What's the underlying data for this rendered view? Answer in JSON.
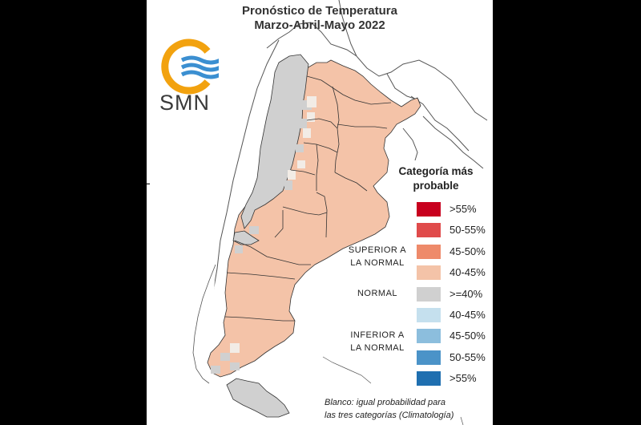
{
  "title_line1": "Pronóstico de Temperatura",
  "title_line2": "Marzo-Abril-Mayo 2022",
  "logo": {
    "text": "SMN",
    "icon": "smn-logo-icon"
  },
  "legend": {
    "title_line1": "Categoría más",
    "title_line2": "probable",
    "items": [
      {
        "label": ">55%",
        "color": "#c8001e"
      },
      {
        "label": "50-55%",
        "color": "#e04b4b"
      },
      {
        "label": "45-50%",
        "color": "#ee8a6a"
      },
      {
        "label": "40-45%",
        "color": "#f4c3a8"
      },
      {
        "label": ">=40%",
        "color": "#d0d0d0"
      },
      {
        "label": "40-45%",
        "color": "#c5e0ee"
      },
      {
        "label": "45-50%",
        "color": "#8cbedd"
      },
      {
        "label": "50-55%",
        "color": "#4b93c8"
      },
      {
        "label": ">55%",
        "color": "#1f6fb0"
      }
    ],
    "categories": {
      "superior_line1": "SUPERIOR A",
      "superior_line2": "LA NORMAL",
      "normal": "NORMAL",
      "inferior_line1": "INFERIOR A",
      "inferior_line2": "LA NORMAL"
    },
    "note_line1": "Blanco: igual probabilidad para",
    "note_line2": "las tres categorías (Climatología)"
  }
}
